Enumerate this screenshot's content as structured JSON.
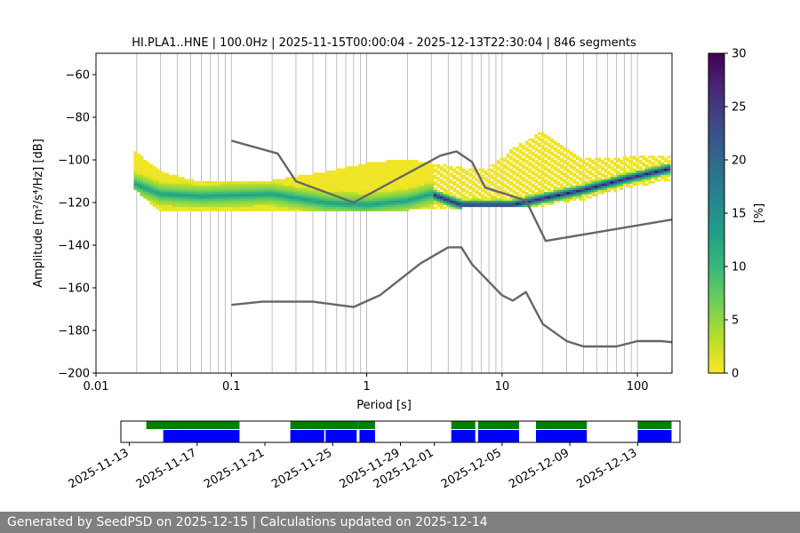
{
  "footer": {
    "text": "Generated by SeedPSD on 2025-12-15 | Calculations updated on 2025-12-14"
  },
  "chart_data": {
    "type": "heatmap",
    "title": "HI.PLA1..HNE | 100.0Hz | 2025-11-15T00:00:04 - 2025-12-13T22:30:04 | 846 segments",
    "xlabel": "Period [s]",
    "ylabel": "Amplitude [m²/s⁴/Hz] [dB]",
    "x_scale": "log",
    "xlim": [
      0.01,
      180
    ],
    "ylim": [
      -200,
      -50
    ],
    "x_ticks": [
      {
        "value": 0.01,
        "label": "0.01"
      },
      {
        "value": 0.1,
        "label": "0.1"
      },
      {
        "value": 1,
        "label": "1"
      },
      {
        "value": 10,
        "label": "10"
      },
      {
        "value": 100,
        "label": "100"
      }
    ],
    "y_ticks": [
      -200,
      -180,
      -160,
      -140,
      -120,
      -100,
      -80,
      -60
    ],
    "grid": "vertical",
    "colorbar": {
      "label": "[%]",
      "range": [
        0,
        30
      ],
      "ticks": [
        0,
        5,
        10,
        15,
        20,
        25,
        30
      ],
      "colormap": [
        "#fde725",
        "#b5de2b",
        "#6ece58",
        "#35b779",
        "#1f9e89",
        "#26828e",
        "#31688e",
        "#3e4989",
        "#482878",
        "#440154"
      ]
    },
    "density_band": [
      {
        "period": 0.019,
        "lower": -113,
        "upper": -96,
        "mode": -111
      },
      {
        "period": 0.03,
        "lower": -124,
        "upper": -106,
        "mode": -116
      },
      {
        "period": 0.06,
        "lower": -124,
        "upper": -111,
        "mode": -117
      },
      {
        "period": 0.2,
        "lower": -123,
        "upper": -110,
        "mode": -116
      },
      {
        "period": 0.5,
        "lower": -124,
        "upper": -106,
        "mode": -120
      },
      {
        "period": 1,
        "lower": -124,
        "upper": -102,
        "mode": -121
      },
      {
        "period": 2,
        "lower": -123,
        "upper": -100,
        "mode": -119
      },
      {
        "period": 3,
        "lower": -123,
        "upper": -102,
        "mode": -116
      },
      {
        "period": 5,
        "lower": -122,
        "upper": -104,
        "mode": -121
      },
      {
        "period": 8,
        "lower": -122,
        "upper": -104,
        "mode": -121
      },
      {
        "period": 12,
        "lower": -122,
        "upper": -95,
        "mode": -121
      },
      {
        "period": 20,
        "lower": -121,
        "upper": -87,
        "mode": -118
      },
      {
        "period": 40,
        "lower": -118,
        "upper": -100,
        "mode": -114
      },
      {
        "period": 80,
        "lower": -113,
        "upper": -99,
        "mode": -109
      },
      {
        "period": 175,
        "lower": -109,
        "upper": -98,
        "mode": -104
      }
    ],
    "series": [
      {
        "x": [
          0.1,
          0.22,
          0.3,
          0.8,
          3.5,
          4.6,
          6,
          7.5,
          15,
          21,
          180
        ],
        "y": [
          -91,
          -97,
          -110,
          -120,
          -98,
          -96,
          -101,
          -113,
          -119,
          -138,
          -128
        ]
      },
      {
        "x": [
          0.1,
          0.17,
          0.4,
          0.8,
          1.25,
          2.5,
          4,
          5,
          6,
          10,
          12,
          15,
          20,
          30,
          40,
          70,
          100,
          150,
          180
        ],
        "y": [
          -168,
          -166.5,
          -166.5,
          -169,
          -163.5,
          -148.5,
          -141,
          -141,
          -149,
          -163.5,
          -166,
          -162,
          -177,
          -185,
          -187.5,
          -187.5,
          -185,
          -185,
          -185.5
        ]
      }
    ],
    "availability": {
      "x_ticks": [
        "2025-11-13",
        "2025-11-17",
        "2025-11-21",
        "2025-11-25",
        "2025-11-29",
        "2025-12-01",
        "2025-12-05",
        "2025-12-09",
        "2025-12-13"
      ],
      "xlim": [
        "2025-11-12T12:00",
        "2025-12-15T12:00"
      ],
      "green_spans": [
        [
          "2025-11-14T00:00",
          "2025-11-19T12:00"
        ],
        [
          "2025-11-22T12:00",
          "2025-11-26T12:00"
        ],
        [
          "2025-11-26T12:00",
          "2025-11-27T12:00"
        ],
        [
          "2025-12-02T00:00",
          "2025-12-03T10:00"
        ],
        [
          "2025-12-03T14:00",
          "2025-12-06T00:00"
        ],
        [
          "2025-12-07T00:00",
          "2025-12-10T00:00"
        ],
        [
          "2025-12-13T00:00",
          "2025-12-15T00:00"
        ]
      ],
      "blue_spans": [
        [
          "2025-11-15T00:00",
          "2025-11-19T12:00"
        ],
        [
          "2025-11-22T12:00",
          "2025-11-24T12:00"
        ],
        [
          "2025-11-24T14:00",
          "2025-11-26T10:00"
        ],
        [
          "2025-11-26T14:00",
          "2025-11-27T12:00"
        ],
        [
          "2025-12-02T00:00",
          "2025-12-03T10:00"
        ],
        [
          "2025-12-03T14:00",
          "2025-12-06T00:00"
        ],
        [
          "2025-12-07T00:00",
          "2025-12-10T00:00"
        ],
        [
          "2025-12-13T00:00",
          "2025-12-15T00:00"
        ]
      ]
    }
  }
}
